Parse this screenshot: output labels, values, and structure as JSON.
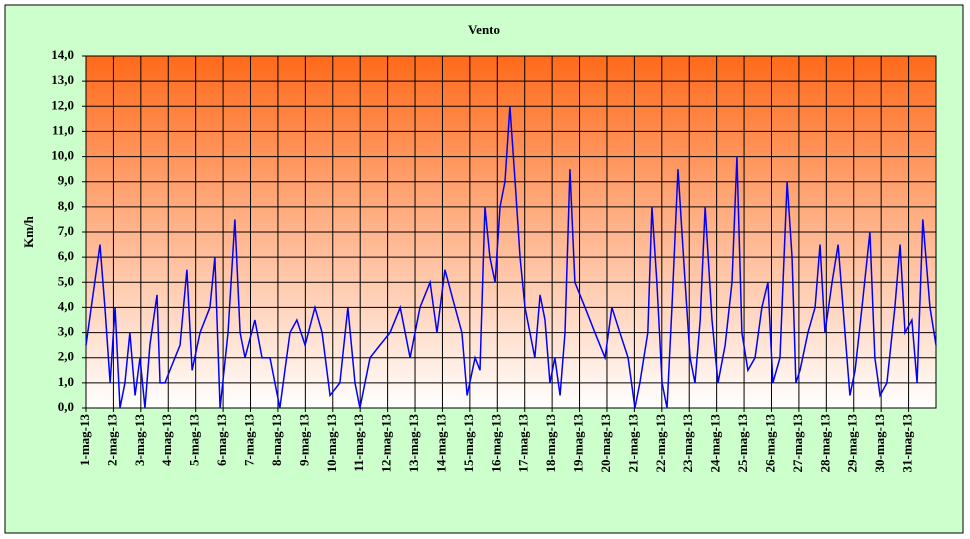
{
  "chart_data": {
    "type": "line",
    "title": "Vento",
    "y_label": "Km/h",
    "series": [
      {
        "color": "#0000ff",
        "x": [
          1.0,
          1.51,
          1.69,
          1.88,
          2.06,
          2.24,
          2.42,
          2.6,
          2.79,
          2.97,
          3.15,
          3.33,
          3.59,
          3.7,
          3.88,
          4.06,
          4.43,
          4.68,
          4.87,
          5.16,
          5.52,
          5.7,
          5.89,
          6.18,
          6.43,
          6.62,
          6.8,
          7.16,
          7.42,
          7.71,
          7.89,
          8.07,
          8.44,
          8.69,
          8.99,
          9.35,
          9.61,
          9.9,
          10.26,
          10.55,
          10.81,
          10.99,
          11.36,
          11.72,
          12.09,
          12.46,
          12.82,
          13.18,
          13.55,
          13.8,
          14.09,
          14.46,
          14.71,
          14.9,
          15.19,
          15.37,
          15.55,
          15.73,
          15.92,
          16.1,
          16.28,
          16.46,
          16.65,
          16.83,
          17.01,
          17.37,
          17.56,
          17.74,
          17.92,
          18.1,
          18.29,
          18.47,
          18.65,
          18.83,
          19.2,
          19.56,
          19.93,
          20.18,
          20.47,
          20.77,
          21.02,
          21.2,
          21.49,
          21.64,
          21.82,
          22.01,
          22.19,
          22.37,
          22.59,
          22.85,
          23.03,
          23.21,
          23.4,
          23.58,
          23.83,
          24.05,
          24.31,
          24.56,
          24.74,
          24.92,
          25.14,
          25.4,
          25.65,
          25.87,
          26.05,
          26.31,
          26.57,
          26.75,
          26.89,
          27.04,
          27.33,
          27.59,
          27.77,
          27.95,
          28.21,
          28.43,
          28.68,
          28.86,
          29.05,
          29.3,
          29.59,
          29.77,
          29.96,
          30.21,
          30.5,
          30.69,
          30.87,
          31.12,
          31.31,
          31.52,
          31.78,
          32.0
        ],
        "values": [
          2.5,
          6.5,
          4,
          1,
          4,
          0,
          1,
          3,
          0.5,
          2,
          0,
          2.5,
          4.5,
          1,
          1,
          1.5,
          2.5,
          5.5,
          1.5,
          3,
          4,
          6,
          0,
          3,
          7.5,
          3,
          2,
          3.5,
          2,
          2,
          1,
          0,
          3,
          3.5,
          2.5,
          4,
          3,
          0.5,
          1,
          4,
          1,
          0,
          2,
          2.5,
          3,
          4,
          2,
          4,
          5,
          3,
          5.5,
          4,
          3,
          0.5,
          2,
          1.5,
          8,
          6,
          5,
          8,
          9,
          12,
          9,
          6,
          4,
          2,
          4.5,
          3.5,
          1,
          2,
          0.5,
          3,
          9.5,
          5,
          4,
          3,
          2,
          4,
          3,
          2,
          0,
          1,
          3,
          8,
          5,
          1,
          0,
          4,
          9.5,
          5,
          2,
          1,
          3.5,
          8,
          3.5,
          1,
          2.5,
          5,
          10,
          3,
          1.5,
          2,
          4,
          5,
          1,
          2,
          9,
          6,
          1,
          1.5,
          3,
          4,
          6.5,
          3,
          5,
          6.5,
          3,
          0.5,
          1.5,
          4,
          7,
          2,
          0.5,
          1,
          4,
          6.5,
          3,
          3.5,
          1,
          7.5,
          4,
          2.5
        ]
      }
    ],
    "xlim": [
      1,
      32
    ],
    "xticks": [
      {
        "value": 1,
        "label": "1-mag-13"
      },
      {
        "value": 2,
        "label": "2-mag-13"
      },
      {
        "value": 3,
        "label": "3-mag-13"
      },
      {
        "value": 4,
        "label": "4-mag-13"
      },
      {
        "value": 5,
        "label": "5-mag-13"
      },
      {
        "value": 6,
        "label": "6-mag-13"
      },
      {
        "value": 7,
        "label": "7-mag-13"
      },
      {
        "value": 8,
        "label": "8-mag-13"
      },
      {
        "value": 9,
        "label": "9-mag-13"
      },
      {
        "value": 10,
        "label": "10-mag-13"
      },
      {
        "value": 11,
        "label": "11-mag-13"
      },
      {
        "value": 12,
        "label": "12-mag-13"
      },
      {
        "value": 13,
        "label": "13-mag-13"
      },
      {
        "value": 14,
        "label": "14-mag-13"
      },
      {
        "value": 15,
        "label": "15-mag-13"
      },
      {
        "value": 16,
        "label": "16-mag-13"
      },
      {
        "value": 17,
        "label": "17-mag-13"
      },
      {
        "value": 18,
        "label": "18-mag-13"
      },
      {
        "value": 19,
        "label": "19-mag-13"
      },
      {
        "value": 20,
        "label": "20-mag-13"
      },
      {
        "value": 21,
        "label": "21-mag-13"
      },
      {
        "value": 22,
        "label": "22-mag-13"
      },
      {
        "value": 23,
        "label": "23-mag-13"
      },
      {
        "value": 24,
        "label": "24-mag-13"
      },
      {
        "value": 25,
        "label": "25-mag-13"
      },
      {
        "value": 26,
        "label": "26-mag-13"
      },
      {
        "value": 27,
        "label": "27-mag-13"
      },
      {
        "value": 28,
        "label": "28-mag-13"
      },
      {
        "value": 29,
        "label": "29-mag-13"
      },
      {
        "value": 30,
        "label": "30-mag-13"
      },
      {
        "value": 31,
        "label": "31-mag-13"
      }
    ],
    "ylim": [
      0,
      14
    ],
    "yticks": [
      {
        "value": 0,
        "label": "0,0"
      },
      {
        "value": 1,
        "label": "1,0"
      },
      {
        "value": 2,
        "label": "2,0"
      },
      {
        "value": 3,
        "label": "3,0"
      },
      {
        "value": 4,
        "label": "4,0"
      },
      {
        "value": 5,
        "label": "5,0"
      },
      {
        "value": 6,
        "label": "6,0"
      },
      {
        "value": 7,
        "label": "7,0"
      },
      {
        "value": 8,
        "label": "8,0"
      },
      {
        "value": 9,
        "label": "9,0"
      },
      {
        "value": 10,
        "label": "10,0"
      },
      {
        "value": 11,
        "label": "11,0"
      },
      {
        "value": 12,
        "label": "12,0"
      },
      {
        "value": 13,
        "label": "13,0"
      },
      {
        "value": 14,
        "label": "14,0"
      }
    ],
    "grid": true
  }
}
